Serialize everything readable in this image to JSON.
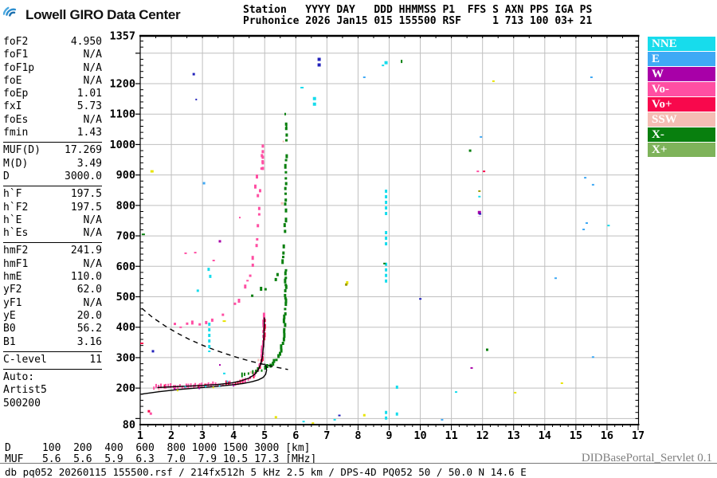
{
  "header": {
    "logo_text": "Lowell GIRO Data Center",
    "station_header": "Station   YYYY DAY   DDD HHMMSS P1  FFS S AXN PPS IGA PS",
    "station_values": "Pruhonice 2026 Jan15 015 155500 RSF     1 713 100 03+ 21"
  },
  "params": {
    "groups": [
      [
        {
          "l": "foF2",
          "v": "4.950"
        },
        {
          "l": "foF1",
          "v": "N/A"
        },
        {
          "l": "foF1p",
          "v": "N/A"
        },
        {
          "l": "foE",
          "v": "N/A"
        },
        {
          "l": "foEp",
          "v": "1.01"
        },
        {
          "l": "fxI",
          "v": "5.73"
        },
        {
          "l": "foEs",
          "v": "N/A"
        },
        {
          "l": "fmin",
          "v": "1.43"
        }
      ],
      [
        {
          "l": "MUF(D)",
          "v": "17.269"
        },
        {
          "l": "M(D)",
          "v": "3.49"
        },
        {
          "l": "D",
          "v": "3000.0"
        }
      ],
      [
        {
          "l": "h`F",
          "v": "197.5"
        },
        {
          "l": "h`F2",
          "v": "197.5"
        },
        {
          "l": "h`E",
          "v": "N/A"
        },
        {
          "l": "h`Es",
          "v": "N/A"
        }
      ],
      [
        {
          "l": "hmF2",
          "v": "241.9"
        },
        {
          "l": "hmF1",
          "v": "N/A"
        },
        {
          "l": "hmE",
          "v": "110.0"
        },
        {
          "l": "yF2",
          "v": "62.0"
        },
        {
          "l": "yF1",
          "v": "N/A"
        },
        {
          "l": "yE",
          "v": "20.0"
        },
        {
          "l": "B0",
          "v": "56.2"
        },
        {
          "l": "B1",
          "v": "3.16"
        }
      ],
      [
        {
          "l": "C-level",
          "v": "11"
        }
      ]
    ],
    "auto_lines": [
      "Auto:",
      "Artist5",
      "500200"
    ]
  },
  "legend": [
    {
      "label": "NNE",
      "color": "#17dcec"
    },
    {
      "label": "E",
      "color": "#3fa9f5"
    },
    {
      "label": "W",
      "color": "#a800a8"
    },
    {
      "label": "Vo-",
      "color": "#ff4fa3"
    },
    {
      "label": "Vo+",
      "color": "#f8084c"
    },
    {
      "label": "SSW",
      "color": "#f5bdb4"
    },
    {
      "label": "X-",
      "color": "#087f0e"
    },
    {
      "label": "X+",
      "color": "#7eb35a"
    }
  ],
  "footer": {
    "d_row": "D     100  200  400  600  800 1000 1500 3000 [km]",
    "muf_row": "MUF   5.6  5.6  5.9  6.3  7.0  7.9 10.5 17.3 [MHz]",
    "db_line": "db pq052 20260115 155500.rsf / 214fx512h 5 kHz 2.5 km / DPS-4D PQ052 50 / 50.0 N 14.6 E",
    "servlet": "DIDBasePortal_Servlet 0.1"
  },
  "chart_data": {
    "type": "scatter",
    "x_unit": "MHz",
    "y_unit": "km",
    "x_range": [
      1,
      17
    ],
    "y_range": [
      80,
      1357
    ],
    "x_ticks": [
      1,
      2,
      3,
      4,
      5,
      6,
      7,
      8,
      9,
      10,
      11,
      12,
      13,
      14,
      15,
      16,
      17
    ],
    "y_ticks": [
      1357,
      1200,
      1100,
      1000,
      900,
      800,
      700,
      600,
      500,
      400,
      300,
      200,
      80
    ],
    "grid": true,
    "colors": {
      "cyan": "#17dcec",
      "blue": "#3fa9f5",
      "navy": "#2222bb",
      "magenta": "#a800a8",
      "pink": "#ff4fa3",
      "red": "#f8084c",
      "salmon": "#f5bdb4",
      "green": "#087f0e",
      "ltgreen": "#7eb35a",
      "yellow": "#e8e400",
      "olive": "#9a9a00",
      "grid": "#bfbfbf"
    },
    "traces": [
      {
        "name": "F2-O-trace-hop1",
        "color": "pink",
        "mix_color": "red",
        "mix_th": 0.17,
        "step": 3,
        "w": 2,
        "hp": 3,
        "hv": 3,
        "jy": 2.5,
        "skip": 1,
        "pts": [
          [
            1.45,
            200
          ],
          [
            2.0,
            202
          ],
          [
            2.5,
            204
          ],
          [
            3.0,
            206
          ],
          [
            3.5,
            209
          ],
          [
            3.9,
            212
          ],
          [
            4.2,
            217
          ],
          [
            4.4,
            223
          ],
          [
            4.55,
            230
          ],
          [
            4.7,
            242
          ],
          [
            4.8,
            257
          ],
          [
            4.87,
            277
          ],
          [
            4.92,
            302
          ],
          [
            4.95,
            335
          ],
          [
            4.97,
            372
          ],
          [
            4.985,
            410
          ],
          [
            4.995,
            445
          ]
        ]
      },
      {
        "name": "F2-X-trace-hop1",
        "color": "green",
        "step": 4.5,
        "w": 2,
        "hp": 3,
        "hv": 3,
        "jy": 2,
        "skip": 1,
        "pts": [
          [
            4.25,
            238
          ],
          [
            4.6,
            247
          ],
          [
            4.9,
            257
          ],
          [
            5.1,
            266
          ],
          [
            5.25,
            276
          ],
          [
            5.38,
            290
          ],
          [
            5.48,
            308
          ],
          [
            5.55,
            330
          ],
          [
            5.6,
            358
          ],
          [
            5.63,
            392
          ],
          [
            5.65,
            430
          ],
          [
            5.66,
            470
          ],
          [
            5.67,
            515
          ],
          [
            5.68,
            560
          ],
          [
            5.69,
            600
          ]
        ]
      },
      {
        "name": "F2-O-trace-hop2",
        "color": "pink",
        "step": 9,
        "w": 2,
        "hp": 2,
        "hv": 3,
        "jy": 6,
        "skip": 0.28,
        "pts": [
          [
            1.9,
            408
          ],
          [
            2.3,
            402
          ],
          [
            2.7,
            404
          ],
          [
            3.1,
            412
          ],
          [
            3.5,
            428
          ],
          [
            3.8,
            448
          ],
          [
            4.05,
            472
          ],
          [
            4.25,
            502
          ],
          [
            4.45,
            545
          ],
          [
            4.6,
            598
          ],
          [
            4.72,
            662
          ],
          [
            4.8,
            735
          ],
          [
            4.86,
            815
          ],
          [
            4.9,
            890
          ],
          [
            4.93,
            965
          ],
          [
            4.95,
            1000
          ]
        ]
      },
      {
        "name": "F2-X-trace-hop2",
        "color": "green",
        "step": 7,
        "w": 2,
        "hp": 3,
        "hv": 3,
        "jy": 4,
        "skip": 0.3,
        "pts": [
          [
            4.6,
            505
          ],
          [
            4.9,
            518
          ],
          [
            5.15,
            533
          ],
          [
            5.35,
            555
          ],
          [
            5.5,
            585
          ],
          [
            5.6,
            625
          ],
          [
            5.64,
            680
          ],
          [
            5.66,
            745
          ],
          [
            5.67,
            815
          ],
          [
            5.68,
            890
          ],
          [
            5.69,
            960
          ],
          [
            5.695,
            1030
          ],
          [
            5.7,
            1080
          ]
        ]
      }
    ],
    "model_curves": {
      "profile_solid": [
        [
          1.55,
          202
        ],
        [
          2.2,
          205
        ],
        [
          2.9,
          208
        ],
        [
          3.5,
          212
        ],
        [
          3.95,
          217
        ],
        [
          4.25,
          224
        ],
        [
          4.5,
          233
        ],
        [
          4.68,
          245
        ],
        [
          4.8,
          261
        ],
        [
          4.88,
          281
        ],
        [
          4.93,
          306
        ],
        [
          4.96,
          338
        ],
        [
          4.975,
          375
        ],
        [
          4.985,
          410
        ],
        [
          4.99,
          432
        ]
      ],
      "baseline_solid": [
        [
          1.02,
          180
        ],
        [
          1.6,
          188
        ],
        [
          2.2,
          195
        ],
        [
          2.8,
          200
        ],
        [
          3.4,
          205
        ],
        [
          3.9,
          210
        ],
        [
          4.3,
          215
        ],
        [
          4.6,
          221
        ],
        [
          4.8,
          227
        ],
        [
          4.95,
          235
        ],
        [
          5.03,
          245
        ],
        [
          5.06,
          258
        ],
        [
          5.05,
          270
        ],
        [
          5.0,
          280
        ]
      ],
      "muf_dashed": [
        [
          1.05,
          462
        ],
        [
          1.4,
          432
        ],
        [
          1.8,
          404
        ],
        [
          2.2,
          380
        ],
        [
          2.6,
          359
        ],
        [
          3.0,
          341
        ],
        [
          3.4,
          325
        ],
        [
          3.8,
          311
        ],
        [
          4.2,
          298
        ],
        [
          4.6,
          287
        ],
        [
          5.0,
          277
        ],
        [
          5.4,
          268
        ],
        [
          5.75,
          261
        ]
      ]
    },
    "interference_columns": [
      [
        3.22,
        318,
        415,
        "cyan",
        3
      ],
      [
        8.9,
        96,
        125,
        "cyan",
        3
      ],
      [
        8.9,
        546,
        612,
        "cyan",
        3
      ],
      [
        8.9,
        664,
        716,
        "cyan",
        3
      ],
      [
        8.9,
        768,
        852,
        "cyan",
        3
      ],
      [
        8.9,
        1258,
        1274,
        "cyan",
        4
      ],
      [
        9.25,
        104,
        120,
        "cyan",
        3
      ],
      [
        6.75,
        1252,
        1285,
        "navy",
        4
      ],
      [
        6.6,
        1127,
        1156,
        "cyan",
        4
      ],
      [
        11.9,
        763,
        782,
        "magenta",
        4
      ],
      [
        4.94,
        915,
        1000,
        "pink",
        3
      ]
    ],
    "noise_points": [
      [
        1.05,
        347,
        "red",
        4,
        2
      ],
      [
        1.28,
        124,
        "red",
        3,
        3
      ],
      [
        1.34,
        116,
        "pink",
        3,
        3
      ],
      [
        1.41,
        321,
        "navy",
        3,
        3
      ],
      [
        1.1,
        705,
        "green",
        4,
        2
      ],
      [
        1.38,
        912,
        "yellow",
        4,
        3
      ],
      [
        2.72,
        1231,
        "navy",
        3,
        3
      ],
      [
        2.8,
        1148,
        "navy",
        2,
        2
      ],
      [
        3.05,
        873,
        "blue",
        3,
        3
      ],
      [
        3.56,
        682,
        "magenta",
        3,
        3
      ],
      [
        2.46,
        643,
        "pink",
        3,
        2
      ],
      [
        2.77,
        645,
        "pink",
        3,
        2
      ],
      [
        3.36,
        619,
        "pink",
        3,
        2
      ],
      [
        3.2,
        590,
        "cyan",
        3,
        4
      ],
      [
        3.25,
        567,
        "cyan",
        3,
        4
      ],
      [
        2.85,
        520,
        "cyan",
        3,
        3
      ],
      [
        3.7,
        420,
        "yellow",
        4,
        2
      ],
      [
        6.2,
        1187,
        "cyan",
        4,
        2
      ],
      [
        5.66,
        1100,
        "green",
        2,
        3
      ],
      [
        5.7,
        1062,
        "green",
        2,
        4
      ],
      [
        8.8,
        1260,
        "cyan",
        3,
        2
      ],
      [
        9.4,
        1273,
        "green",
        2,
        4
      ],
      [
        8.2,
        1221,
        "blue",
        3,
        2
      ],
      [
        12.35,
        1208,
        "yellow",
        3,
        2
      ],
      [
        15.5,
        1221,
        "blue",
        3,
        2
      ],
      [
        11.95,
        1025,
        "blue",
        3,
        2
      ],
      [
        11.6,
        980,
        "green",
        3,
        3
      ],
      [
        11.85,
        912,
        "pink",
        3,
        2
      ],
      [
        12.05,
        912,
        "red",
        3,
        2
      ],
      [
        15.3,
        891,
        "blue",
        3,
        2
      ],
      [
        15.55,
        868,
        "blue",
        3,
        2
      ],
      [
        11.9,
        847,
        "olive",
        3,
        2
      ],
      [
        11.9,
        829,
        "cyan",
        3,
        2
      ],
      [
        11.92,
        772,
        "navy",
        3,
        2
      ],
      [
        15.35,
        742,
        "blue",
        3,
        2
      ],
      [
        15.25,
        721,
        "blue",
        3,
        2
      ],
      [
        16.05,
        734,
        "cyan",
        3,
        2
      ],
      [
        8.85,
        609,
        "green",
        3,
        2
      ],
      [
        14.35,
        561,
        "blue",
        3,
        2
      ],
      [
        7.65,
        546,
        "yellow",
        3,
        4
      ],
      [
        7.62,
        540,
        "olive",
        3,
        3
      ],
      [
        10.0,
        493,
        "navy",
        3,
        2
      ],
      [
        12.15,
        326,
        "green",
        3,
        3
      ],
      [
        15.55,
        302,
        "blue",
        3,
        2
      ],
      [
        11.65,
        266,
        "magenta",
        3,
        2
      ],
      [
        14.55,
        216,
        "yellow",
        3,
        2
      ],
      [
        13.05,
        185,
        "yellow",
        3,
        2
      ],
      [
        11.15,
        187,
        "cyan",
        3,
        2
      ],
      [
        9.25,
        203,
        "cyan",
        3,
        4
      ],
      [
        8.2,
        111,
        "yellow",
        3,
        3
      ],
      [
        10.7,
        96,
        "blue",
        3,
        2
      ],
      [
        5.36,
        104,
        "yellow",
        3,
        3
      ],
      [
        6.25,
        90,
        "cyan",
        3,
        2
      ],
      [
        7.25,
        96,
        "cyan",
        3,
        2
      ],
      [
        5.56,
        807,
        "salmon",
        3,
        3
      ],
      [
        4.7,
        862,
        "pink",
        3,
        5
      ],
      [
        4.75,
        895,
        "pink",
        3,
        5
      ],
      [
        4.78,
        832,
        "pink",
        3,
        4
      ],
      [
        5.6,
        1010,
        "salmon",
        2,
        2
      ],
      [
        4.2,
        760,
        "pink",
        2,
        2
      ],
      [
        2.1,
        197,
        "magenta",
        2,
        2
      ],
      [
        2.45,
        204,
        "cyan",
        2,
        2
      ],
      [
        2.9,
        199,
        "magenta",
        2,
        2
      ],
      [
        3.1,
        205,
        "cyan",
        2,
        2
      ],
      [
        3.35,
        202,
        "yellow",
        2,
        2
      ],
      [
        3.55,
        207,
        "cyan",
        2,
        2
      ],
      [
        3.8,
        222,
        "cyan",
        2,
        2
      ],
      [
        4.0,
        208,
        "magenta",
        2,
        2
      ],
      [
        3.7,
        248,
        "cyan",
        3,
        2
      ],
      [
        2.2,
        192,
        "yellow",
        2,
        2
      ],
      [
        1.6,
        194,
        "salmon",
        2,
        2
      ],
      [
        4.55,
        252,
        "salmon",
        2,
        3
      ],
      [
        4.8,
        292,
        "salmon",
        2,
        3
      ],
      [
        3.56,
        276,
        "magenta",
        2,
        2
      ],
      [
        6.55,
        85,
        "yellow",
        3,
        2
      ],
      [
        7.4,
        110,
        "navy",
        3,
        2
      ]
    ]
  }
}
